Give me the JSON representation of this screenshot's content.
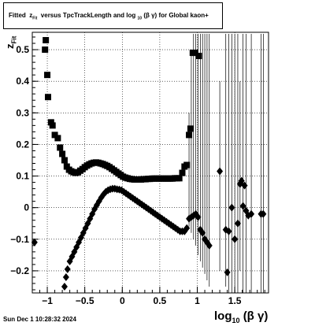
{
  "title": {
    "prefix": "Fitted",
    "z": "z",
    "z_sub": "Fit",
    "middle": "versus TpcTrackLength and log",
    "log_sub": "10",
    "beta_gamma": "(β  γ)",
    "suffix": "for Global kaon+"
  },
  "footer": {
    "timestamp": "Sun Dec  1 10:28:32 2024"
  },
  "axes": {
    "xlabel_main": "log",
    "xlabel_sub": "10",
    "xlabel_tail": "(β γ)",
    "ylabel_main": "z",
    "ylabel_sub": "Fit"
  },
  "chart_data": {
    "type": "scatter",
    "xlim": [
      -1.2,
      1.95
    ],
    "ylim": [
      -0.27,
      0.555
    ],
    "grid": true,
    "x_ticks": [
      -1,
      -0.5,
      0,
      0.5,
      1,
      1.5
    ],
    "x_tick_labels": [
      "−1",
      "−0.5",
      "0",
      "0.5",
      "1",
      "1.5"
    ],
    "y_ticks": [
      -0.2,
      -0.1,
      0,
      0.1,
      0.2,
      0.3,
      0.4,
      0.5
    ],
    "y_tick_labels": [
      "−0.2",
      "−0.1",
      "0",
      "0.1",
      "0.2",
      "0.3",
      "0.4",
      "0.5"
    ],
    "series": [
      {
        "marker": "square",
        "points": [
          [
            -1.02,
            0.53
          ],
          [
            -1.03,
            0.5
          ],
          [
            -1.0,
            0.42
          ],
          [
            -0.99,
            0.35
          ],
          [
            -0.95,
            0.27
          ],
          [
            -0.93,
            0.26
          ],
          [
            -0.9,
            0.23
          ],
          [
            -0.86,
            0.22
          ],
          [
            -0.83,
            0.19
          ],
          [
            -0.8,
            0.17
          ],
          [
            -0.77,
            0.15
          ],
          [
            -0.74,
            0.13
          ],
          [
            -0.71,
            0.12
          ],
          [
            -0.68,
            0.115
          ],
          [
            -0.65,
            0.112
          ],
          [
            -0.62,
            0.11
          ],
          [
            -0.59,
            0.112
          ],
          [
            -0.56,
            0.117
          ],
          [
            -0.53,
            0.122
          ],
          [
            -0.5,
            0.128
          ],
          [
            -0.47,
            0.133
          ],
          [
            -0.44,
            0.137
          ],
          [
            -0.41,
            0.14
          ],
          [
            -0.38,
            0.142
          ],
          [
            -0.35,
            0.143
          ],
          [
            -0.32,
            0.142
          ],
          [
            -0.29,
            0.14
          ],
          [
            -0.26,
            0.138
          ],
          [
            -0.23,
            0.135
          ],
          [
            -0.2,
            0.132
          ],
          [
            -0.17,
            0.128
          ],
          [
            -0.14,
            0.123
          ],
          [
            -0.11,
            0.118
          ],
          [
            -0.08,
            0.113
          ],
          [
            -0.05,
            0.108
          ],
          [
            -0.02,
            0.103
          ],
          [
            0.01,
            0.098
          ],
          [
            0.04,
            0.095
          ],
          [
            0.07,
            0.093
          ],
          [
            0.1,
            0.091
          ],
          [
            0.13,
            0.09
          ],
          [
            0.16,
            0.089
          ],
          [
            0.19,
            0.089
          ],
          [
            0.22,
            0.089
          ],
          [
            0.25,
            0.089
          ],
          [
            0.28,
            0.09
          ],
          [
            0.31,
            0.09
          ],
          [
            0.34,
            0.091
          ],
          [
            0.37,
            0.091
          ],
          [
            0.4,
            0.092
          ],
          [
            0.43,
            0.092
          ],
          [
            0.46,
            0.092
          ],
          [
            0.49,
            0.092
          ],
          [
            0.52,
            0.092
          ],
          [
            0.55,
            0.092
          ],
          [
            0.58,
            0.092
          ],
          [
            0.61,
            0.092
          ],
          [
            0.64,
            0.092
          ],
          [
            0.67,
            0.092
          ],
          [
            0.7,
            0.093
          ],
          [
            0.73,
            0.093
          ],
          [
            0.76,
            0.093
          ],
          [
            0.8,
            0.11
          ],
          [
            0.83,
            0.13
          ],
          [
            0.86,
            0.135
          ],
          [
            0.89,
            0.23
          ],
          [
            0.91,
            0.25
          ],
          [
            0.94,
            0.49
          ],
          [
            0.97,
            0.49
          ],
          [
            1.02,
            0.48
          ]
        ]
      },
      {
        "marker": "diamond",
        "points": [
          [
            -1.17,
            -0.11
          ],
          [
            -0.77,
            -0.25
          ],
          [
            -0.75,
            -0.22
          ],
          [
            -0.73,
            -0.195
          ],
          [
            -0.7,
            -0.17
          ],
          [
            -0.67,
            -0.155
          ],
          [
            -0.64,
            -0.14
          ],
          [
            -0.61,
            -0.125
          ],
          [
            -0.58,
            -0.11
          ],
          [
            -0.55,
            -0.095
          ],
          [
            -0.52,
            -0.08
          ],
          [
            -0.49,
            -0.065
          ],
          [
            -0.46,
            -0.05
          ],
          [
            -0.43,
            -0.035
          ],
          [
            -0.4,
            -0.02
          ],
          [
            -0.37,
            -0.005
          ],
          [
            -0.34,
            0.008
          ],
          [
            -0.31,
            0.02
          ],
          [
            -0.28,
            0.032
          ],
          [
            -0.25,
            0.042
          ],
          [
            -0.22,
            0.05
          ],
          [
            -0.19,
            0.055
          ],
          [
            -0.16,
            0.058
          ],
          [
            -0.13,
            0.06
          ],
          [
            -0.1,
            0.06
          ],
          [
            -0.07,
            0.058
          ],
          [
            -0.04,
            0.057
          ],
          [
            -0.01,
            0.055
          ],
          [
            0.02,
            0.05
          ],
          [
            0.05,
            0.045
          ],
          [
            0.08,
            0.04
          ],
          [
            0.11,
            0.035
          ],
          [
            0.14,
            0.03
          ],
          [
            0.17,
            0.025
          ],
          [
            0.2,
            0.02
          ],
          [
            0.23,
            0.015
          ],
          [
            0.26,
            0.01
          ],
          [
            0.29,
            0.005
          ],
          [
            0.32,
            0.0
          ],
          [
            0.35,
            -0.005
          ],
          [
            0.38,
            -0.01
          ],
          [
            0.41,
            -0.015
          ],
          [
            0.44,
            -0.02
          ],
          [
            0.47,
            -0.025
          ],
          [
            0.5,
            -0.03
          ],
          [
            0.53,
            -0.035
          ],
          [
            0.56,
            -0.04
          ],
          [
            0.59,
            -0.045
          ],
          [
            0.62,
            -0.05
          ],
          [
            0.65,
            -0.055
          ],
          [
            0.68,
            -0.06
          ],
          [
            0.71,
            -0.065
          ],
          [
            0.74,
            -0.07
          ],
          [
            0.77,
            -0.075
          ],
          [
            0.8,
            -0.075
          ],
          [
            0.83,
            -0.075
          ],
          [
            0.86,
            -0.065
          ],
          [
            0.89,
            -0.035
          ],
          [
            0.92,
            -0.03
          ],
          [
            0.95,
            -0.025
          ],
          [
            0.98,
            -0.02
          ],
          [
            1.01,
            -0.03
          ],
          [
            1.04,
            -0.07
          ],
          [
            1.07,
            -0.08
          ],
          [
            1.1,
            -0.1
          ],
          [
            1.13,
            -0.11
          ],
          [
            1.16,
            -0.12
          ],
          [
            1.3,
            0.115
          ],
          [
            1.38,
            -0.07
          ],
          [
            1.4,
            -0.205
          ],
          [
            1.42,
            -0.075
          ],
          [
            1.46,
            0.0
          ],
          [
            1.5,
            -0.1
          ],
          [
            1.54,
            -0.05
          ],
          [
            1.57,
            0.075
          ],
          [
            1.59,
            0.085
          ],
          [
            1.61,
            0.005
          ],
          [
            1.63,
            0.07
          ],
          [
            1.65,
            -0.01
          ],
          [
            1.68,
            -0.025
          ],
          [
            1.72,
            -0.02
          ],
          [
            1.85,
            -0.02
          ],
          [
            1.88,
            -0.02
          ]
        ]
      }
    ],
    "error_bars": [
      [
        0.89,
        -0.06,
        0.3
      ],
      [
        0.92,
        -0.08,
        0.49
      ],
      [
        0.95,
        -0.1,
        0.55
      ],
      [
        0.98,
        -0.12,
        0.55
      ],
      [
        1.01,
        -0.15,
        0.55
      ],
      [
        1.04,
        -0.17,
        0.55
      ],
      [
        1.07,
        -0.19,
        0.55
      ],
      [
        1.1,
        -0.21,
        0.55
      ],
      [
        1.13,
        -0.23,
        0.55
      ],
      [
        1.16,
        -0.25,
        0.55
      ],
      [
        1.3,
        -0.2,
        0.4
      ],
      [
        1.38,
        -0.25,
        0.55
      ],
      [
        1.42,
        -0.27,
        0.55
      ],
      [
        1.46,
        -0.27,
        0.55
      ],
      [
        1.5,
        -0.27,
        0.55
      ],
      [
        1.54,
        -0.27,
        0.55
      ],
      [
        1.57,
        -0.2,
        0.4
      ],
      [
        1.61,
        -0.27,
        0.55
      ],
      [
        1.65,
        -0.27,
        0.55
      ],
      [
        1.72,
        -0.27,
        0.55
      ],
      [
        1.85,
        -0.27,
        0.55
      ],
      [
        1.88,
        -0.27,
        0.55
      ]
    ]
  }
}
